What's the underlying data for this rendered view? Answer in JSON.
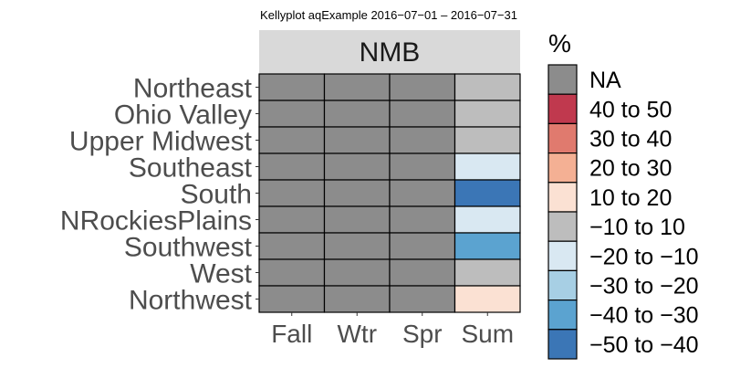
{
  "chart_data": {
    "type": "heatmap",
    "title": "Kellyplot aqExample 2016−07−01 – 2016−07−31",
    "facet_label": "NMB",
    "xlabel": "",
    "ylabel": "",
    "x_categories": [
      "Fall",
      "Wtr",
      "Spr",
      "Sum"
    ],
    "y_categories": [
      "Northeast",
      "Ohio Valley",
      "Upper Midwest",
      "Southeast",
      "South",
      "NRockiesPlains",
      "Southwest",
      "West",
      "Northwest"
    ],
    "legend_title": "%",
    "legend": [
      {
        "label": "NA",
        "color": "#8c8c8c"
      },
      {
        "label": "40 to 50",
        "color": "#c0394e"
      },
      {
        "label": "30 to 40",
        "color": "#e07a6e"
      },
      {
        "label": "20 to 30",
        "color": "#f4b094"
      },
      {
        "label": "10 to 20",
        "color": "#fbe1d3"
      },
      {
        "label": "−10 to 10",
        "color": "#bdbdbd"
      },
      {
        "label": "−20 to −10",
        "color": "#d9e8f2"
      },
      {
        "label": "−30 to −20",
        "color": "#a7cfe4"
      },
      {
        "label": "−40 to −30",
        "color": "#5ba3d0"
      },
      {
        "label": "−50 to −40",
        "color": "#3b76b6"
      }
    ],
    "cells": [
      [
        "NA",
        "NA",
        "NA",
        "−10 to 10"
      ],
      [
        "NA",
        "NA",
        "NA",
        "−10 to 10"
      ],
      [
        "NA",
        "NA",
        "NA",
        "−10 to 10"
      ],
      [
        "NA",
        "NA",
        "NA",
        "−20 to −10"
      ],
      [
        "NA",
        "NA",
        "NA",
        "−50 to −40"
      ],
      [
        "NA",
        "NA",
        "NA",
        "−20 to −10"
      ],
      [
        "NA",
        "NA",
        "NA",
        "−40 to −30"
      ],
      [
        "NA",
        "NA",
        "NA",
        "−10 to 10"
      ],
      [
        "NA",
        "NA",
        "NA",
        "10 to 20"
      ]
    ],
    "strip_color": "#d9d9d9",
    "cell_border_color": "#000000"
  }
}
